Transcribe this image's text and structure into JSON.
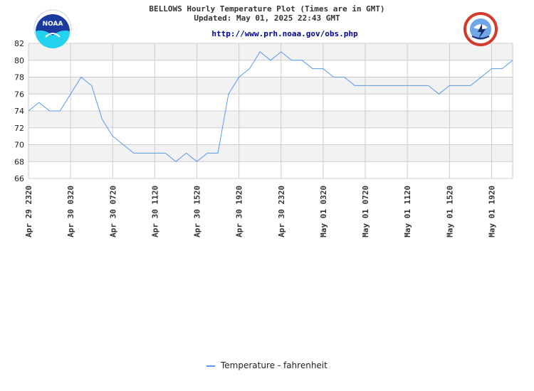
{
  "header": {
    "title": "BELLOWS Hourly Temperature Plot (Times are in GMT)",
    "updated": "Updated: May 01, 2025 22:43 GMT",
    "url": "http://www.prh.noaa.gov/obs.php"
  },
  "logos": {
    "left": {
      "icon": "noaa-logo",
      "text": "NOAA"
    },
    "right": {
      "icon": "nws-logo",
      "text": "NATIONAL WEATHER SERVICE"
    }
  },
  "colors": {
    "line": "#5599ee",
    "band": "#f2f2f2",
    "grid": "#cccccc"
  },
  "chart_data": {
    "type": "line",
    "title": "BELLOWS Hourly Temperature Plot (Times are in GMT)",
    "xlabel": "",
    "ylabel": "",
    "ylim": [
      66,
      82
    ],
    "yticks": [
      66,
      68,
      70,
      72,
      74,
      76,
      78,
      80,
      82
    ],
    "grid": true,
    "legend": "bottom",
    "x_tick_labels": [
      "Apr 29 2320",
      "Apr 30 0320",
      "Apr 30 0720",
      "Apr 30 1120",
      "Apr 30 1520",
      "Apr 30 1920",
      "Apr 30 2320",
      "May 01 0320",
      "May 01 0720",
      "May 01 1120",
      "May 01 1520",
      "May 01 1920"
    ],
    "series": [
      {
        "name": "Temperature - fahrenheit",
        "values": [
          74,
          75,
          74,
          74,
          76,
          78,
          77,
          73,
          71,
          70,
          69,
          69,
          69,
          69,
          68,
          69,
          68,
          69,
          69,
          76,
          78,
          79,
          81,
          80,
          81,
          80,
          80,
          79,
          79,
          78,
          78,
          77,
          77,
          77,
          77,
          77,
          77,
          77,
          77,
          76,
          77,
          77,
          77,
          78,
          79,
          79,
          80
        ]
      }
    ]
  }
}
